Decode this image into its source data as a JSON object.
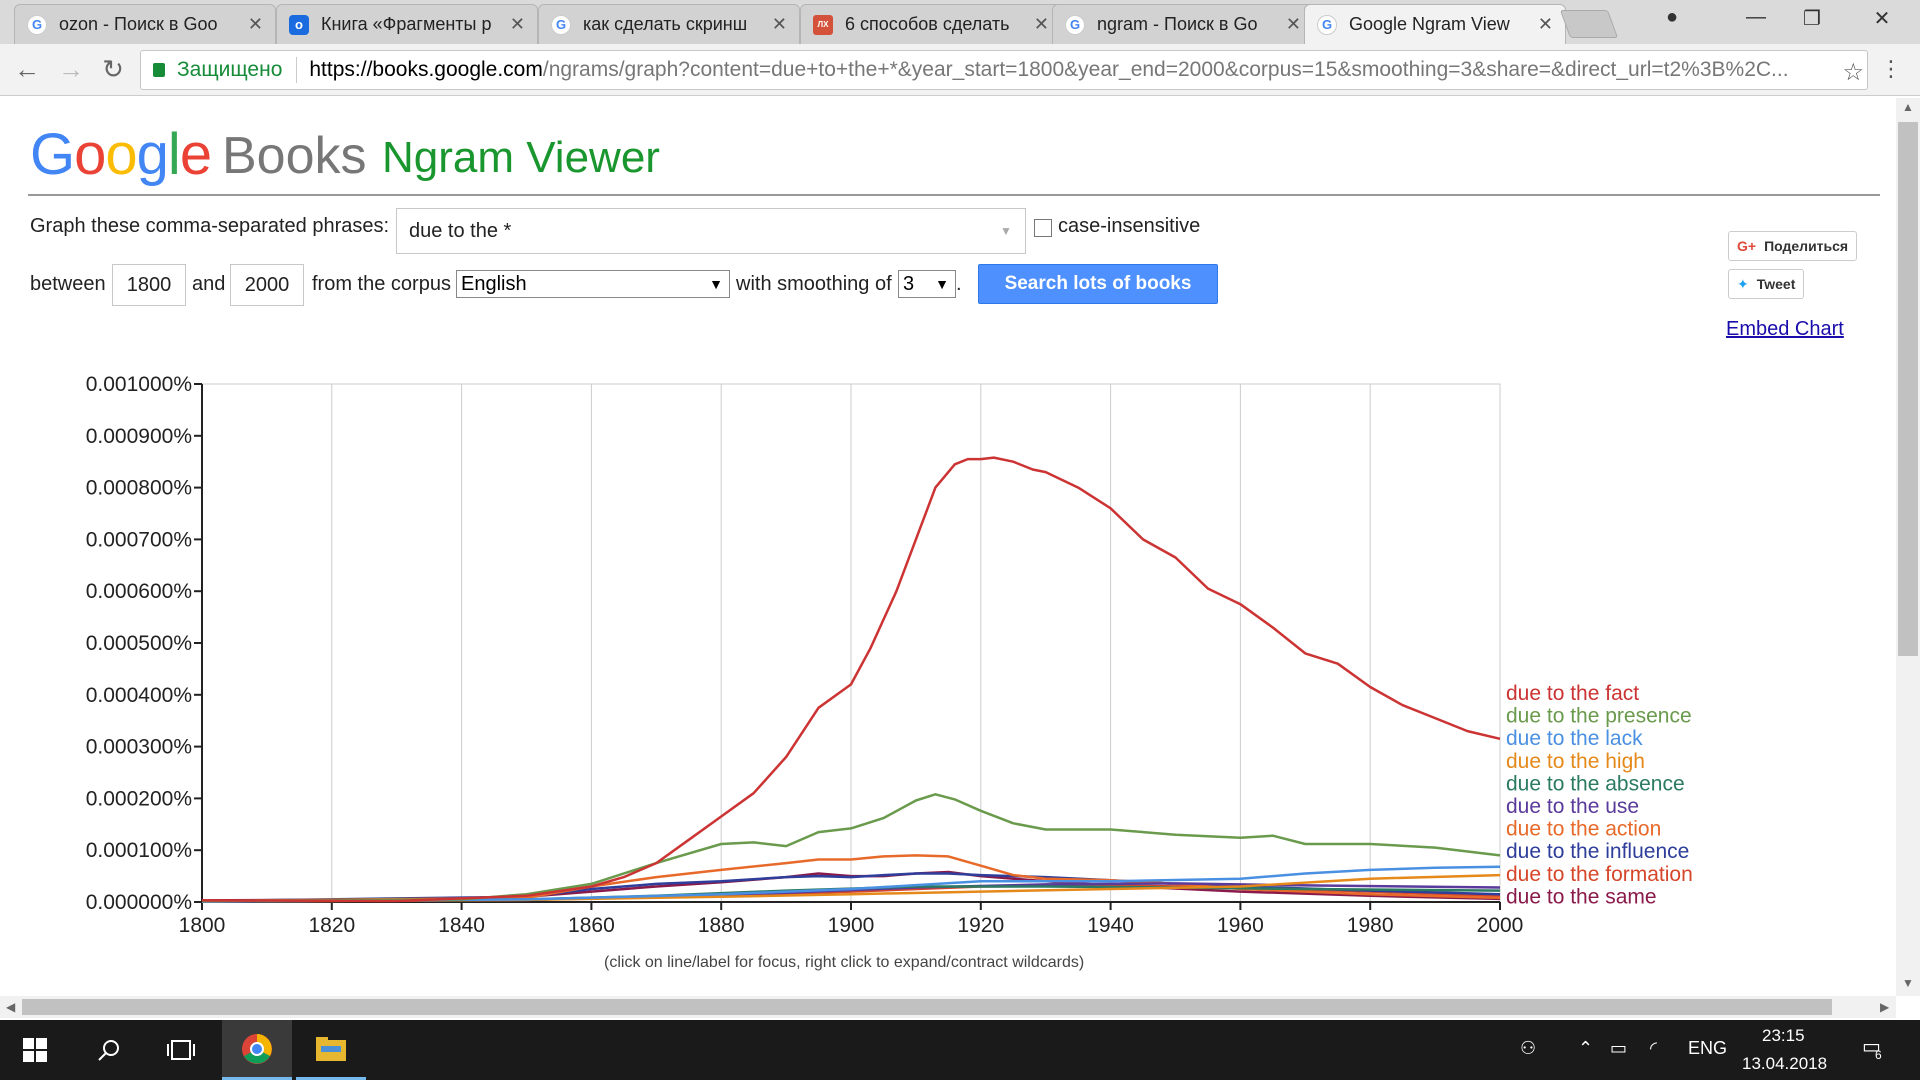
{
  "browser": {
    "tabs": [
      {
        "title": "ozon - Поиск в Goo",
        "icon": "google-icon"
      },
      {
        "title": "Книга «Фрагменты р",
        "icon": "ozon-icon"
      },
      {
        "title": "как сделать скринш",
        "icon": "google-icon"
      },
      {
        "title": "6 способов сделать",
        "icon": "lifehacker-icon"
      },
      {
        "title": "ngram - Поиск в Go",
        "icon": "google-icon"
      },
      {
        "title": "Google Ngram View",
        "icon": "google-icon"
      }
    ],
    "secure_label": "Защищено",
    "url_host": "https://books.google.com",
    "url_rest": "/ngrams/graph?content=due+to+the+*&year_start=1800&year_end=2000&corpus=15&smoothing=3&share=&direct_url=t2%3B%2C..."
  },
  "logo": {
    "google_letters": [
      "G",
      "o",
      "o",
      "g",
      "l",
      "e"
    ],
    "books": "Books",
    "product": "Ngram Viewer"
  },
  "form": {
    "phrases_label": "Graph these comma-separated phrases:",
    "phrases_value": "due to the *",
    "case_insensitive_label": "case-insensitive",
    "between_label": "between",
    "year_start": "1800",
    "and_label": "and",
    "year_end": "2000",
    "corpus_label": "from the corpus",
    "corpus_value": "English",
    "smoothing_label": "with smoothing of",
    "smoothing_value": "3",
    "period": ".",
    "search_button": "Search lots of books"
  },
  "share": {
    "gplus": "Поделиться",
    "tweet": "Tweet",
    "embed": "Embed Chart"
  },
  "chart_data": {
    "type": "line",
    "xlim": [
      1800,
      2000
    ],
    "ylim": [
      0,
      0.001
    ],
    "x_ticks": [
      1800,
      1820,
      1840,
      1860,
      1880,
      1900,
      1920,
      1940,
      1960,
      1980,
      2000
    ],
    "x_tick_labels": [
      "1800",
      "1820",
      "1840",
      "1860",
      "1880",
      "1900",
      "1920",
      "1940",
      "1960",
      "1980",
      "2000"
    ],
    "y_ticks": [
      0,
      0.0001,
      0.0002,
      0.0003,
      0.0004,
      0.0005,
      0.0006,
      0.0007,
      0.0008,
      0.0009,
      0.001
    ],
    "y_tick_labels": [
      "0.000000%",
      "0.000100%",
      "0.000200%",
      "0.000300%",
      "0.000400%",
      "0.000500%",
      "0.000600%",
      "0.000700%",
      "0.000800%",
      "0.000900%",
      "0.001000%"
    ],
    "grid": true,
    "legend": "right",
    "series": [
      {
        "name": "due to the fact",
        "color": "#cc3333",
        "x": [
          1800,
          1830,
          1850,
          1860,
          1865,
          1870,
          1875,
          1880,
          1885,
          1890,
          1895,
          1900,
          1903,
          1907,
          1910,
          1913,
          1916,
          1918,
          1920,
          1922,
          1925,
          1928,
          1930,
          1935,
          1940,
          1945,
          1950,
          1955,
          1960,
          1965,
          1970,
          1975,
          1980,
          1985,
          1990,
          1995,
          2000
        ],
        "y": [
          3e-06,
          2e-06,
          1.2e-05,
          3e-05,
          4.8e-05,
          7.5e-05,
          0.00012,
          0.000165,
          0.00021,
          0.00028,
          0.000375,
          0.00042,
          0.00049,
          0.0006,
          0.0007,
          0.0008,
          0.000845,
          0.000855,
          0.000855,
          0.000858,
          0.00085,
          0.000835,
          0.00083,
          0.0008,
          0.00076,
          0.0007,
          0.000665,
          0.000605,
          0.000575,
          0.00053,
          0.00048,
          0.00046,
          0.000415,
          0.00038,
          0.000355,
          0.00033,
          0.000315
        ]
      },
      {
        "name": "due to the presence",
        "color": "#6a9a4c",
        "x": [
          1800,
          1840,
          1850,
          1860,
          1870,
          1880,
          1885,
          1890,
          1895,
          1900,
          1905,
          1910,
          1913,
          1916,
          1920,
          1925,
          1930,
          1940,
          1950,
          1960,
          1965,
          1970,
          1980,
          1990,
          2000
        ],
        "y": [
          2e-06,
          5e-06,
          1.5e-05,
          3.5e-05,
          7.5e-05,
          0.000112,
          0.000115,
          0.000108,
          0.000135,
          0.000142,
          0.000162,
          0.000196,
          0.000208,
          0.000198,
          0.000176,
          0.000152,
          0.00014,
          0.00014,
          0.00013,
          0.000124,
          0.000128,
          0.000112,
          0.000112,
          0.000105,
          9e-05
        ]
      },
      {
        "name": "due to the lack",
        "color": "#4a90e2",
        "x": [
          1800,
          1850,
          1880,
          1900,
          1920,
          1940,
          1960,
          1970,
          1980,
          1990,
          2000
        ],
        "y": [
          1e-06,
          5e-06,
          1.5e-05,
          2.5e-05,
          4e-05,
          4e-05,
          4.5e-05,
          5.5e-05,
          6.2e-05,
          6.6e-05,
          6.8e-05
        ]
      },
      {
        "name": "due to the high",
        "color": "#e5891a",
        "x": [
          1800,
          1850,
          1880,
          1900,
          1920,
          1940,
          1960,
          1980,
          2000
        ],
        "y": [
          1e-06,
          4e-06,
          1e-05,
          1.5e-05,
          2e-05,
          2.5e-05,
          3e-05,
          4.5e-05,
          5.2e-05
        ]
      },
      {
        "name": "due to the absence",
        "color": "#2a7b62",
        "x": [
          1800,
          1850,
          1870,
          1890,
          1910,
          1930,
          1950,
          1970,
          2000
        ],
        "y": [
          1e-06,
          5e-06,
          1.2e-05,
          2.2e-05,
          3e-05,
          3e-05,
          2.8e-05,
          2.5e-05,
          2.2e-05
        ]
      },
      {
        "name": "due to the use",
        "color": "#5a3a9a",
        "x": [
          1800,
          1850,
          1870,
          1890,
          1910,
          1930,
          1950,
          1970,
          2000
        ],
        "y": [
          1e-06,
          4e-06,
          1e-05,
          1.8e-05,
          2.8e-05,
          3.4e-05,
          3.6e-05,
          3.2e-05,
          2.8e-05
        ]
      },
      {
        "name": "due to the action",
        "color": "#e86a2a",
        "x": [
          1800,
          1850,
          1860,
          1870,
          1880,
          1890,
          1895,
          1900,
          1905,
          1910,
          1915,
          1920,
          1925,
          1930,
          1940,
          1950,
          1960,
          1980,
          2000
        ],
        "y": [
          2e-06,
          8e-06,
          3e-05,
          4.8e-05,
          6.2e-05,
          7.5e-05,
          8.2e-05,
          8.2e-05,
          8.8e-05,
          9e-05,
          8.8e-05,
          7e-05,
          5.2e-05,
          4.5e-05,
          4.2e-05,
          3.5e-05,
          2.5e-05,
          1.5e-05,
          8e-06
        ]
      },
      {
        "name": "due to the influence",
        "color": "#2e3e9a",
        "x": [
          1800,
          1850,
          1860,
          1870,
          1880,
          1890,
          1895,
          1900,
          1905,
          1910,
          1915,
          1920,
          1930,
          1940,
          1950,
          1960,
          1980,
          2000
        ],
        "y": [
          2e-06,
          1e-05,
          2.5e-05,
          3.5e-05,
          4e-05,
          4.8e-05,
          5e-05,
          4.8e-05,
          5.2e-05,
          5.5e-05,
          5.5e-05,
          5.2e-05,
          4.8e-05,
          4.2e-05,
          3.5e-05,
          3e-05,
          2.2e-05,
          1.5e-05
        ]
      },
      {
        "name": "due to the formation",
        "color": "#d6472a",
        "x": [
          1800,
          1850,
          1880,
          1900,
          1920,
          1940,
          1960,
          1980,
          2000
        ],
        "y": [
          1e-06,
          4e-06,
          1.2e-05,
          2e-05,
          3e-05,
          3.2e-05,
          2.8e-05,
          2e-05,
          1.2e-05
        ]
      },
      {
        "name": "due to the same",
        "color": "#8a1a4a",
        "x": [
          1800,
          1830,
          1850,
          1860,
          1870,
          1880,
          1890,
          1895,
          1900,
          1905,
          1910,
          1915,
          1920,
          1930,
          1940,
          1950,
          1960,
          1980,
          2000
        ],
        "y": [
          3e-06,
          5e-06,
          1e-05,
          2e-05,
          3e-05,
          3.8e-05,
          4.8e-05,
          5.5e-05,
          5e-05,
          5e-05,
          5.5e-05,
          5.8e-05,
          5e-05,
          4e-05,
          3.2e-05,
          2.6e-05,
          2e-05,
          1.2e-05,
          6e-06
        ]
      }
    ]
  },
  "chart_hint": "(click on line/label for focus, right click to expand/contract wildcards)",
  "taskbar": {
    "lang": "ENG",
    "time": "23:15",
    "date": "13.04.2018",
    "notif_count": "6"
  }
}
